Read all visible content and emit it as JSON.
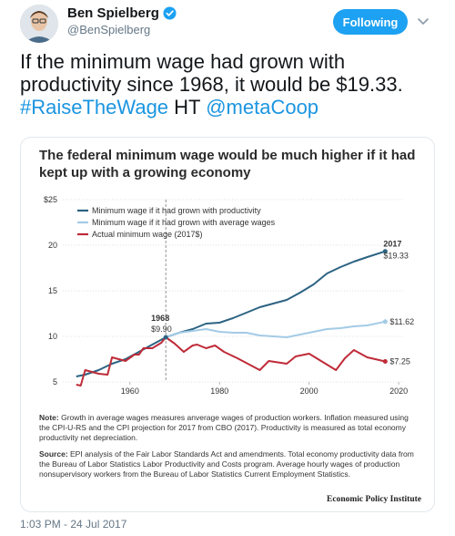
{
  "tweet": {
    "author_name": "Ben Spielberg",
    "author_handle": "@BenSpielberg",
    "follow_label": "Following",
    "text_main": "If the minimum wage had grown with productivity since 1968, it would be $19.33.",
    "hashtag": "#RaiseTheWage",
    "text_ht": " HT ",
    "mention": "@metaCoop",
    "timestamp": "1:03 PM - 24 Jul 2017",
    "colors": {
      "accent": "#1da1f2",
      "link": "#1b95e0"
    },
    "icons": {
      "verified": "verified-badge-icon",
      "caret": "chevron-down-icon"
    }
  },
  "chart": {
    "note_label": "Note:",
    "note_text": " Growth in average wages measures anverage wages of production workers. Inflation measured using the CPI-U-RS and the CPI projection for 2017 from CBO (2017). Productivity is measured as total economy productivity net depreciation.",
    "source_label": "Source:",
    "source_text": " EPI analysis of the Fair Labor Standards Act and amendments. Total economy productivity data from the Bureau of Labor Statistics Labor Productivity and Costs program. Average hourly wages of production nonsupervisory workers from the Bureau of Labor Statistics Current Employment Statistics.",
    "credit": "Economic Policy Institute"
  },
  "chart_data": {
    "type": "line",
    "title": "The federal minimum wage would be much higher if it had kept up with a growing economy",
    "xlabel": "",
    "ylabel": "",
    "xlim": [
      1945,
      2021
    ],
    "ylim": [
      5,
      25
    ],
    "x_ticks": [
      "1960",
      "1980",
      "2000",
      "2020"
    ],
    "y_ticks": [
      "$25",
      "20",
      "15",
      "10",
      "5"
    ],
    "grid": "horizontal",
    "legend_position": "top-left",
    "series": [
      {
        "name": "Minimum wage if it had grown with productivity",
        "color": "#2c6382",
        "x": [
          1948,
          1950,
          1953,
          1956,
          1959,
          1962,
          1965,
          1968,
          1971,
          1974,
          1977,
          1980,
          1983,
          1986,
          1989,
          1992,
          1995,
          1998,
          2001,
          2004,
          2007,
          2010,
          2013,
          2017
        ],
        "y": [
          5.6,
          5.8,
          6.3,
          7.0,
          7.5,
          8.3,
          9.1,
          9.9,
          10.4,
          10.8,
          11.4,
          11.5,
          12.0,
          12.6,
          13.2,
          13.6,
          14.0,
          14.8,
          15.7,
          16.9,
          17.6,
          18.2,
          18.7,
          19.33
        ]
      },
      {
        "name": "Minimum wage if it had grown with average wages",
        "color": "#a3cbe6",
        "x": [
          1968,
          1971,
          1974,
          1977,
          1980,
          1983,
          1986,
          1989,
          1992,
          1995,
          1998,
          2001,
          2004,
          2007,
          2010,
          2013,
          2017
        ],
        "y": [
          9.9,
          10.4,
          10.6,
          10.8,
          10.5,
          10.4,
          10.4,
          10.1,
          10.0,
          9.9,
          10.2,
          10.5,
          10.8,
          10.9,
          11.1,
          11.2,
          11.62
        ]
      },
      {
        "name": "Actual minimum wage (2017$)",
        "color": "#bf2b38",
        "x": [
          1948,
          1949,
          1950,
          1953,
          1955,
          1956,
          1959,
          1961,
          1962,
          1963,
          1965,
          1967,
          1968,
          1970,
          1972,
          1974,
          1975,
          1977,
          1979,
          1981,
          1984,
          1989,
          1991,
          1995,
          1997,
          2000,
          2006,
          2008,
          2010,
          2013,
          2017
        ],
        "y": [
          4.7,
          4.6,
          6.3,
          5.9,
          5.8,
          7.7,
          7.3,
          8.0,
          8.0,
          8.7,
          8.7,
          9.3,
          9.9,
          9.2,
          8.3,
          9.0,
          9.1,
          8.7,
          9.0,
          8.3,
          7.6,
          6.3,
          7.3,
          7.0,
          7.8,
          8.1,
          6.3,
          7.6,
          8.5,
          7.7,
          7.25
        ]
      }
    ],
    "annotations": [
      {
        "year_label": "1968",
        "value_label": "$9.90"
      },
      {
        "year_label": "2017",
        "value_label": "$19.33"
      },
      {
        "value_label": "$11.62"
      },
      {
        "value_label": "$7.25"
      }
    ]
  }
}
